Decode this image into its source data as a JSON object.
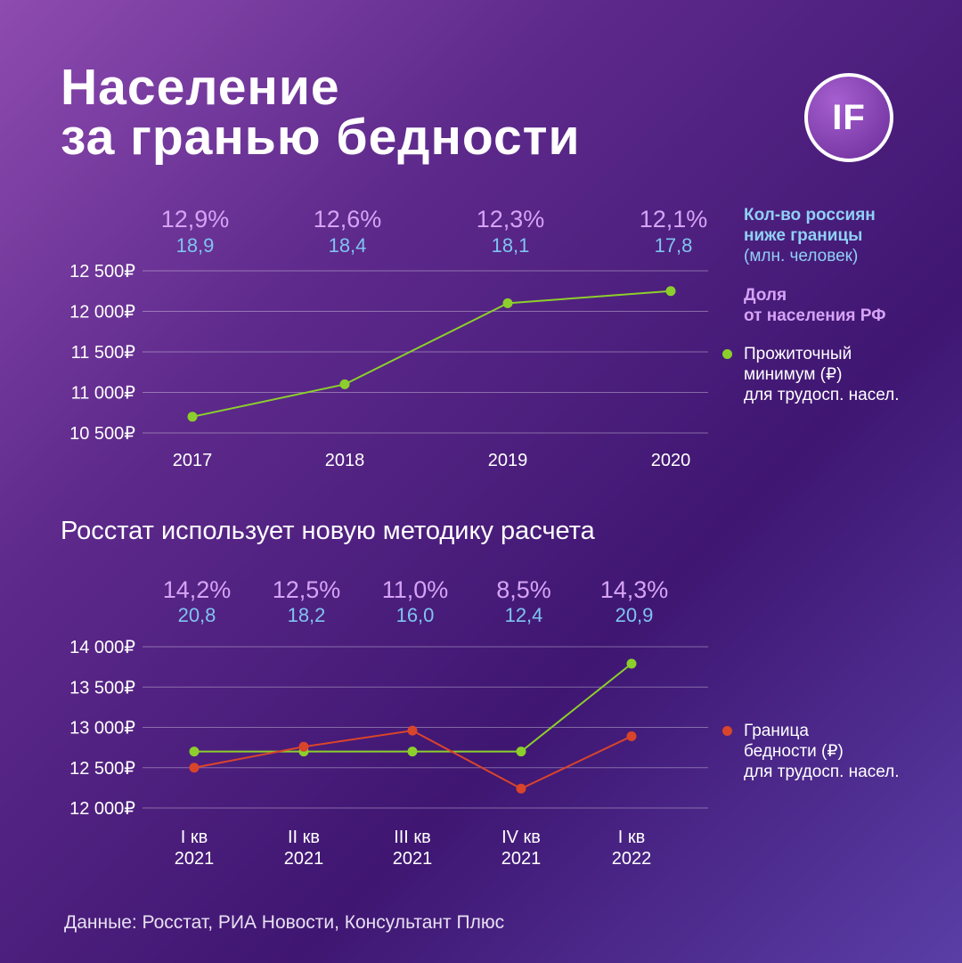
{
  "title": {
    "line1": "Население",
    "line2": "за гранью бедности"
  },
  "logo": "IF",
  "colors": {
    "green": "#8ccf2c",
    "red": "#d9452b",
    "pct": "#d6a3f5",
    "count": "#7fc4f0"
  },
  "chart_data": [
    {
      "type": "line",
      "categories": [
        "2017",
        "2018",
        "2019",
        "2020"
      ],
      "series": [
        {
          "name": "Прожиточный минимум (₽) для трудосп. насел.",
          "values": [
            10700,
            11100,
            12100,
            12250
          ],
          "color": "#8ccf2c"
        }
      ],
      "share_pct": [
        "12,9%",
        "12,6%",
        "12,3%",
        "12,1%"
      ],
      "count_mln": [
        "18,9",
        "18,4",
        "18,1",
        "17,8"
      ],
      "y_ticks": [
        10500,
        11000,
        11500,
        12000,
        12500
      ],
      "y_tick_labels": [
        "10 500₽",
        "11 000₽",
        "11 500₽",
        "12 000₽",
        "12 500₽"
      ],
      "ylim": [
        10500,
        12500
      ],
      "grid": true
    },
    {
      "type": "line",
      "categories": [
        "I кв 2021",
        "II кв 2021",
        "III кв 2021",
        "IV кв 2021",
        "I кв 2022"
      ],
      "category_lines": [
        [
          "I кв",
          "2021"
        ],
        [
          "II кв",
          "2021"
        ],
        [
          "III кв",
          "2021"
        ],
        [
          "IV кв",
          "2021"
        ],
        [
          "I кв",
          "2022"
        ]
      ],
      "series": [
        {
          "name": "Прожиточный минимум (₽) для трудосп. насел.",
          "values": [
            12700,
            12700,
            12700,
            12700,
            13790
          ],
          "color": "#8ccf2c"
        },
        {
          "name": "Граница бедности (₽) для трудосп. насел.",
          "values": [
            12500,
            12760,
            12960,
            12240,
            12890
          ],
          "color": "#d9452b"
        }
      ],
      "share_pct": [
        "14,2%",
        "12,5%",
        "11,0%",
        "8,5%",
        "14,3%"
      ],
      "count_mln": [
        "20,8",
        "18,2",
        "16,0",
        "12,4",
        "20,9"
      ],
      "y_ticks": [
        12000,
        12500,
        13000,
        13500,
        14000
      ],
      "y_tick_labels": [
        "12 000₽",
        "12 500₽",
        "13 000₽",
        "13 500₽",
        "14 000₽"
      ],
      "ylim": [
        12000,
        14000
      ],
      "grid": true
    }
  ],
  "subtitle": "Росстат использует новую методику расчета",
  "legend": {
    "count_l1": "Кол-во россиян",
    "count_l2": "ниже границы",
    "count_l3": "(млн. человек)",
    "share_l1": "Доля",
    "share_l2": "от населения РФ",
    "min_l1": "Прожиточный",
    "min_l2": "минимум (₽)",
    "min_l3": "для трудосп. насел.",
    "pov_l1": "Граница",
    "pov_l2": "бедности (₽)",
    "pov_l3": "для трудосп. насел."
  },
  "source": "Данные: Росстат, РИА Новости, Консультант Плюс"
}
